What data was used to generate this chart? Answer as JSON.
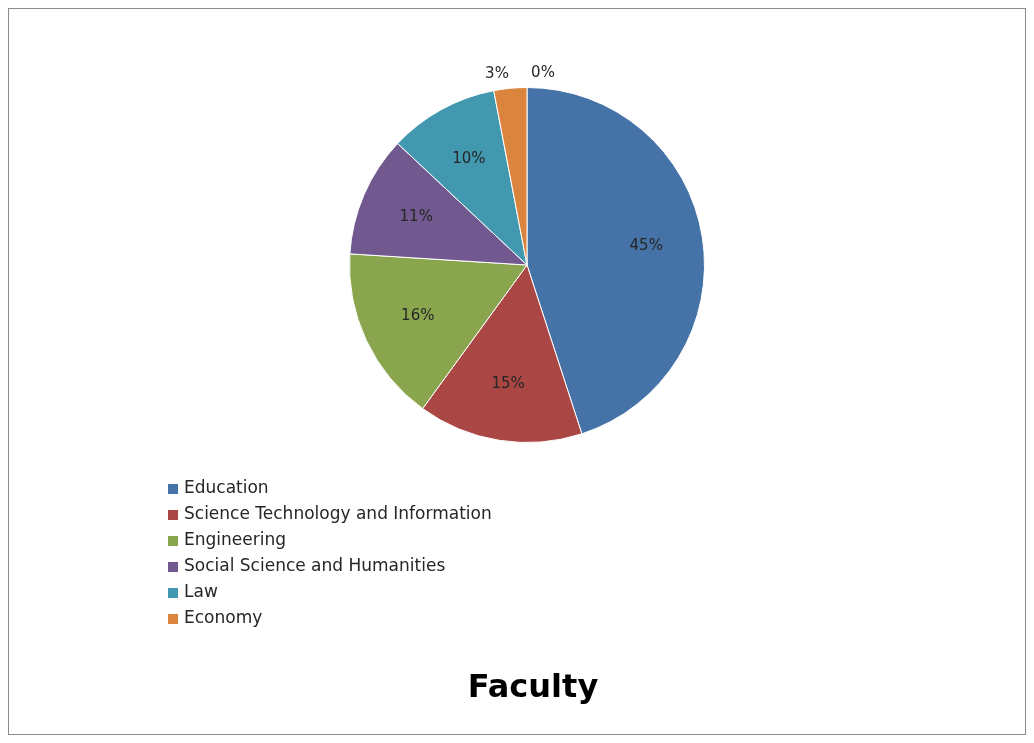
{
  "chart_data": {
    "type": "pie",
    "title": "Faculty",
    "categories": [
      "Education",
      "Science Technology and Information",
      "Engineering",
      "Social Science and Humanities",
      "Law",
      "Economy",
      null
    ],
    "values": [
      45,
      15,
      16,
      11,
      10,
      3,
      0
    ],
    "colors": [
      "#4572a7",
      "#aa4643",
      "#89a54e",
      "#71588f",
      "#4198af",
      "#db843d",
      "#93a9cf"
    ],
    "value_labels": [
      "45%",
      "15%",
      "16%",
      "11%",
      "10%",
      "3%",
      "0%"
    ],
    "legend": "bottom left"
  }
}
